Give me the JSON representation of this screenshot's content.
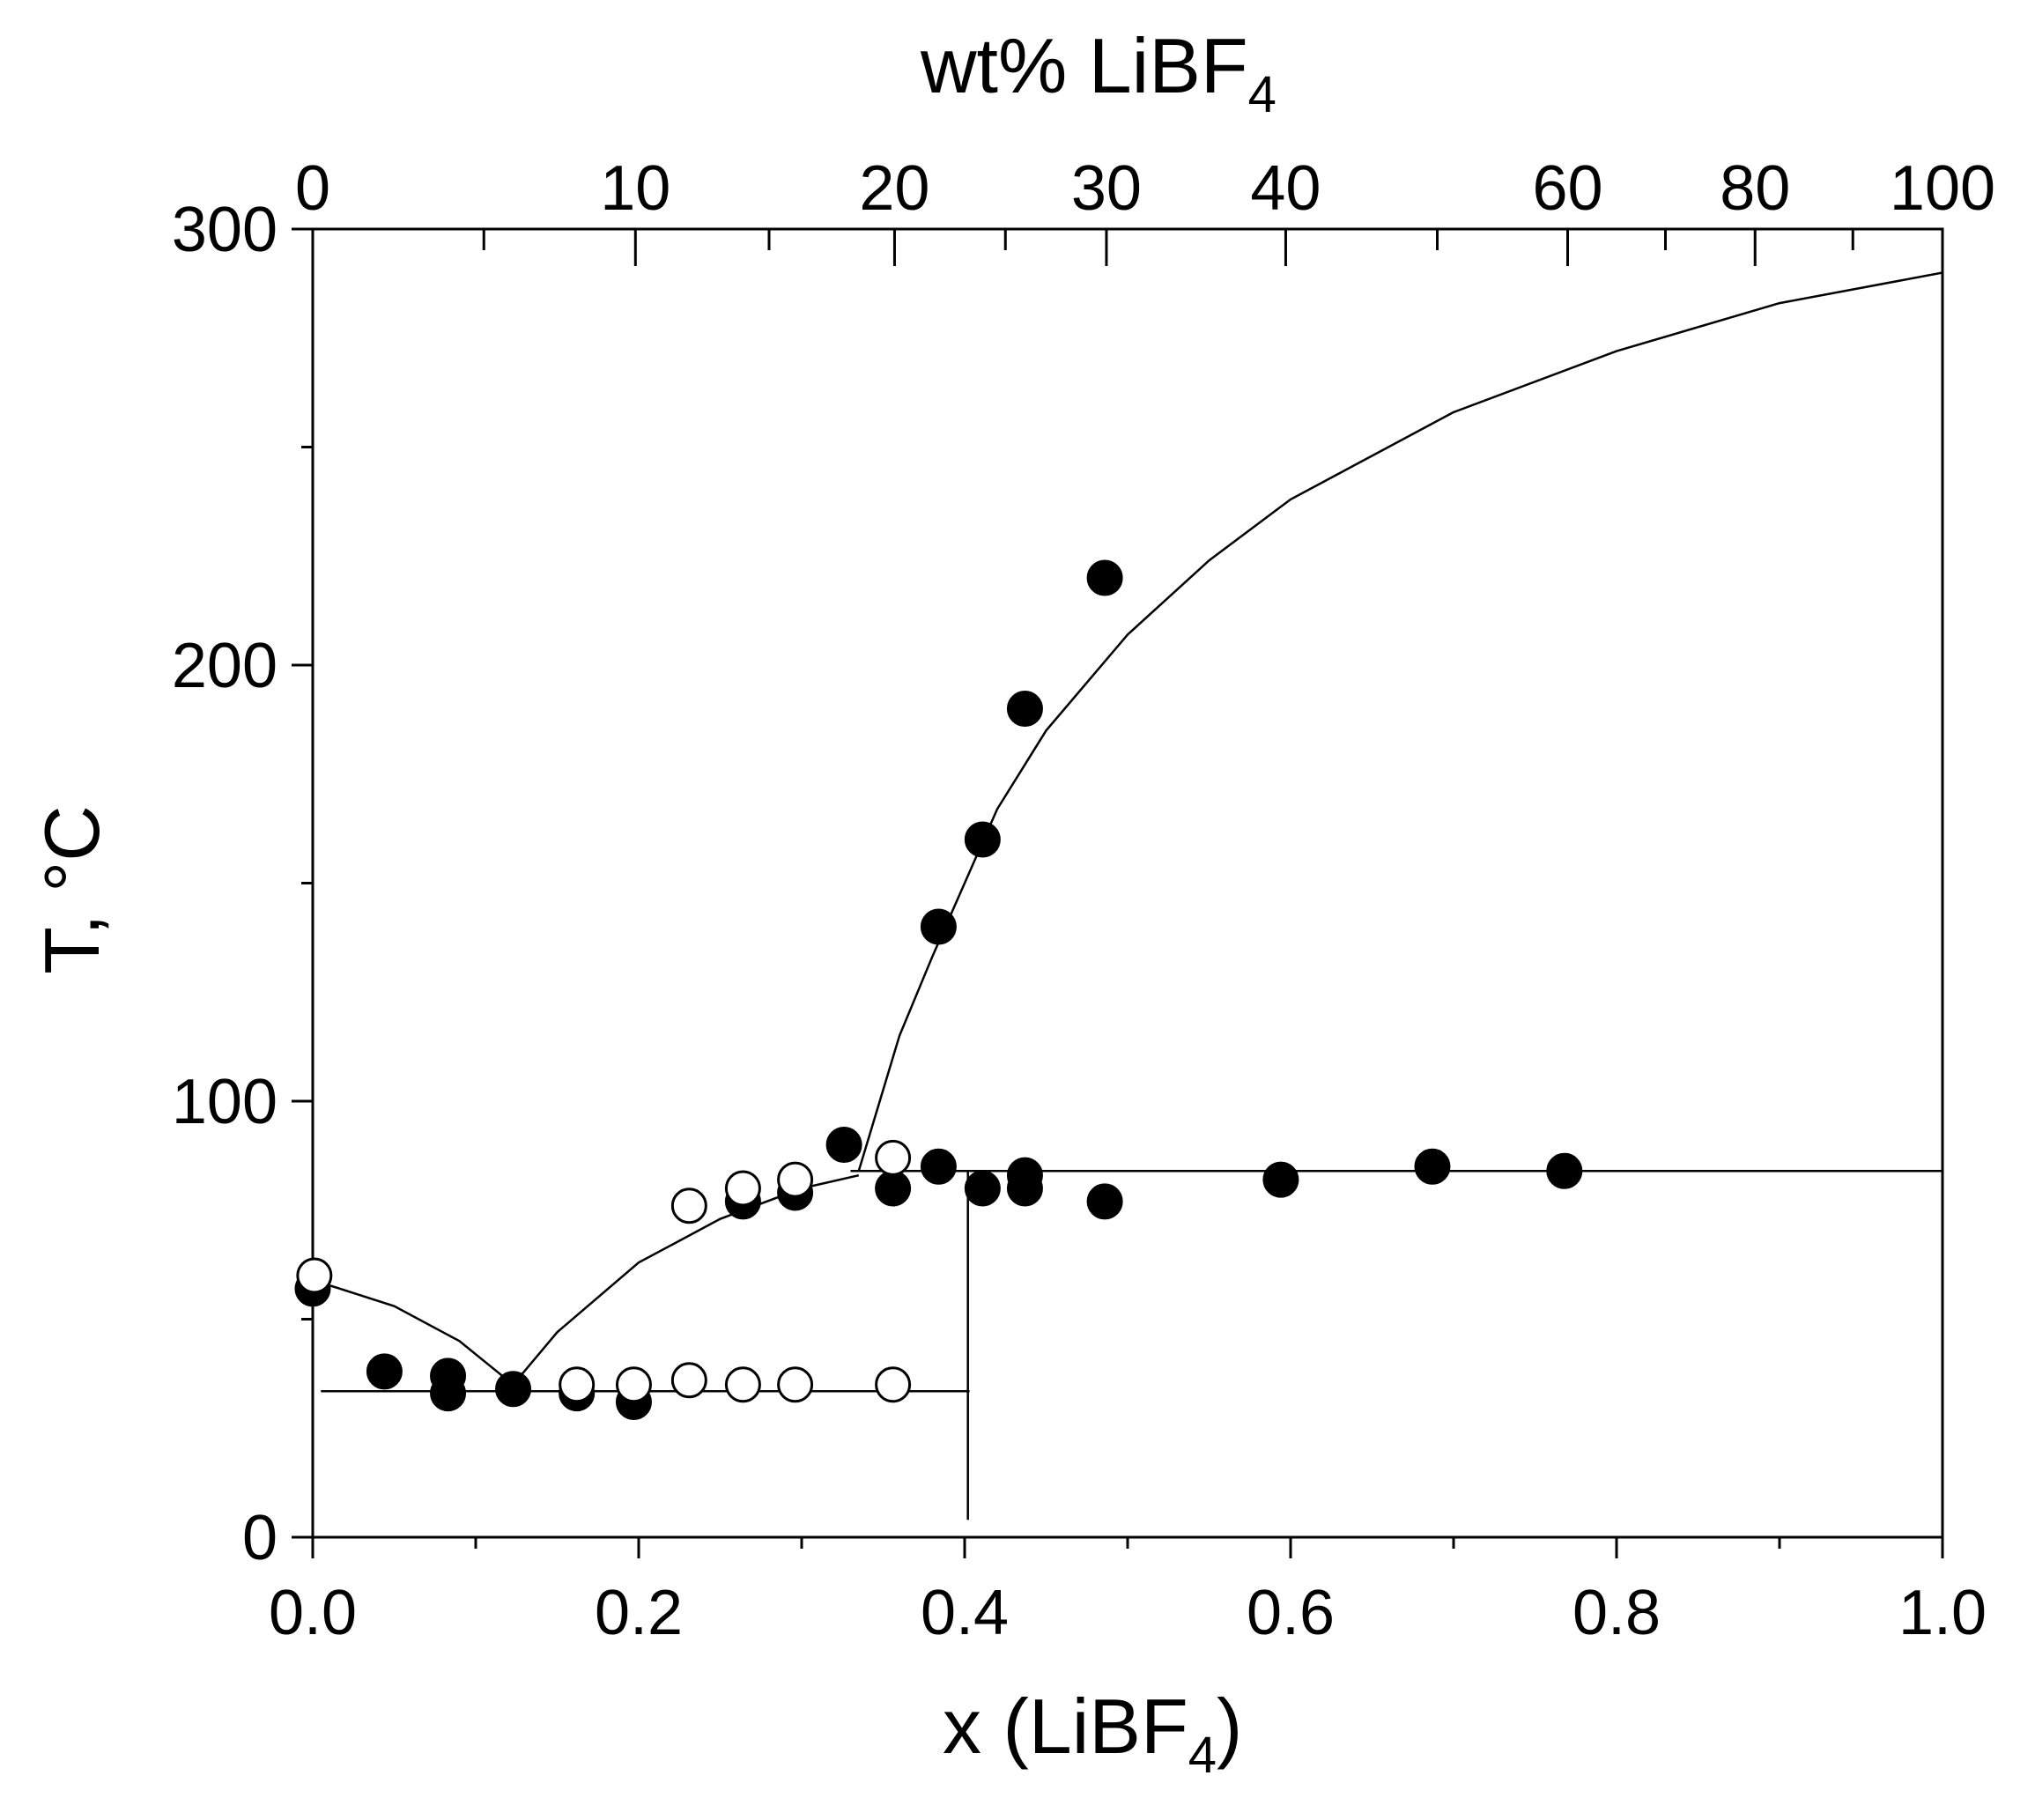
{
  "chart_data": {
    "type": "scatter",
    "title": "",
    "xlabel": {
      "main": "x (LiBF",
      "sub": "4",
      "tail": ")"
    },
    "ylabel": "T, °C",
    "top_xlabel": {
      "main": "wt% LiBF",
      "sub": "4"
    },
    "xlim": [
      0,
      1
    ],
    "ylim": [
      0,
      300
    ],
    "x_major_ticks": [
      0.0,
      0.2,
      0.4,
      0.6,
      0.8,
      1.0
    ],
    "x_tick_labels": [
      "0.0",
      "0.2",
      "0.4",
      "0.6",
      "0.8",
      "1.0"
    ],
    "x_minor_ticks": [
      0.1,
      0.3,
      0.5,
      0.7,
      0.9
    ],
    "y_major_ticks": [
      0,
      100,
      200,
      300
    ],
    "y_tick_labels": [
      "0",
      "100",
      "200",
      "300"
    ],
    "y_minor_ticks": [
      50,
      150,
      250
    ],
    "top_ticks": [
      {
        "label": "0",
        "x": 0.0
      },
      {
        "label": "10",
        "x": 0.198
      },
      {
        "label": "20",
        "x": 0.357
      },
      {
        "label": "30",
        "x": 0.487
      },
      {
        "label": "40",
        "x": 0.597
      },
      {
        "label": "60",
        "x": 0.77
      },
      {
        "label": "80",
        "x": 0.885
      },
      {
        "label": "100",
        "x": 1.0
      }
    ],
    "top_minor_ticks": [
      0.105,
      0.28,
      0.425,
      0.69,
      0.83,
      0.945
    ],
    "series": [
      {
        "name": "filled",
        "marker": "filled-circle",
        "points": [
          [
            0.0,
            57
          ],
          [
            0.044,
            38
          ],
          [
            0.083,
            37
          ],
          [
            0.083,
            33
          ],
          [
            0.123,
            34
          ],
          [
            0.162,
            33
          ],
          [
            0.197,
            31
          ],
          [
            0.264,
            77
          ],
          [
            0.296,
            79
          ],
          [
            0.326,
            90
          ],
          [
            0.356,
            80
          ],
          [
            0.384,
            85
          ],
          [
            0.384,
            140
          ],
          [
            0.411,
            80
          ],
          [
            0.411,
            160
          ],
          [
            0.437,
            80
          ],
          [
            0.437,
            83
          ],
          [
            0.437,
            190
          ],
          [
            0.486,
            77
          ],
          [
            0.486,
            220
          ],
          [
            0.594,
            82
          ],
          [
            0.687,
            85
          ],
          [
            0.768,
            84
          ]
        ]
      },
      {
        "name": "open",
        "marker": "open-circle",
        "points": [
          [
            0.001,
            60
          ],
          [
            0.162,
            35
          ],
          [
            0.197,
            35
          ],
          [
            0.231,
            36
          ],
          [
            0.231,
            76
          ],
          [
            0.264,
            35
          ],
          [
            0.264,
            80
          ],
          [
            0.296,
            35
          ],
          [
            0.296,
            82
          ],
          [
            0.356,
            35
          ],
          [
            0.356,
            87
          ]
        ]
      }
    ],
    "lines": [
      {
        "name": "liquidus-left",
        "points": [
          [
            0.0,
            59
          ],
          [
            0.05,
            53
          ],
          [
            0.09,
            45
          ],
          [
            0.123,
            35
          ]
        ]
      },
      {
        "name": "liquidus-middle",
        "points": [
          [
            0.123,
            35
          ],
          [
            0.15,
            47
          ],
          [
            0.2,
            63
          ],
          [
            0.25,
            73
          ],
          [
            0.3,
            80
          ],
          [
            0.335,
            83
          ]
        ]
      },
      {
        "name": "liquidus-right",
        "points": [
          [
            0.335,
            84
          ],
          [
            0.36,
            115
          ],
          [
            0.38,
            133
          ],
          [
            0.4,
            150
          ],
          [
            0.42,
            167
          ],
          [
            0.45,
            185
          ],
          [
            0.5,
            207
          ],
          [
            0.55,
            224
          ],
          [
            0.6,
            238
          ],
          [
            0.7,
            258
          ],
          [
            0.8,
            272
          ],
          [
            0.9,
            283
          ],
          [
            1.0,
            290
          ]
        ]
      },
      {
        "name": "eutectic",
        "points": [
          [
            0.005,
            33.5
          ],
          [
            0.403,
            33.5
          ]
        ]
      },
      {
        "name": "peritectic",
        "points": [
          [
            0.33,
            84
          ],
          [
            1.0,
            84
          ]
        ]
      },
      {
        "name": "vertical-compound",
        "points": [
          [
            0.402,
            4
          ],
          [
            0.402,
            84
          ]
        ]
      }
    ]
  }
}
